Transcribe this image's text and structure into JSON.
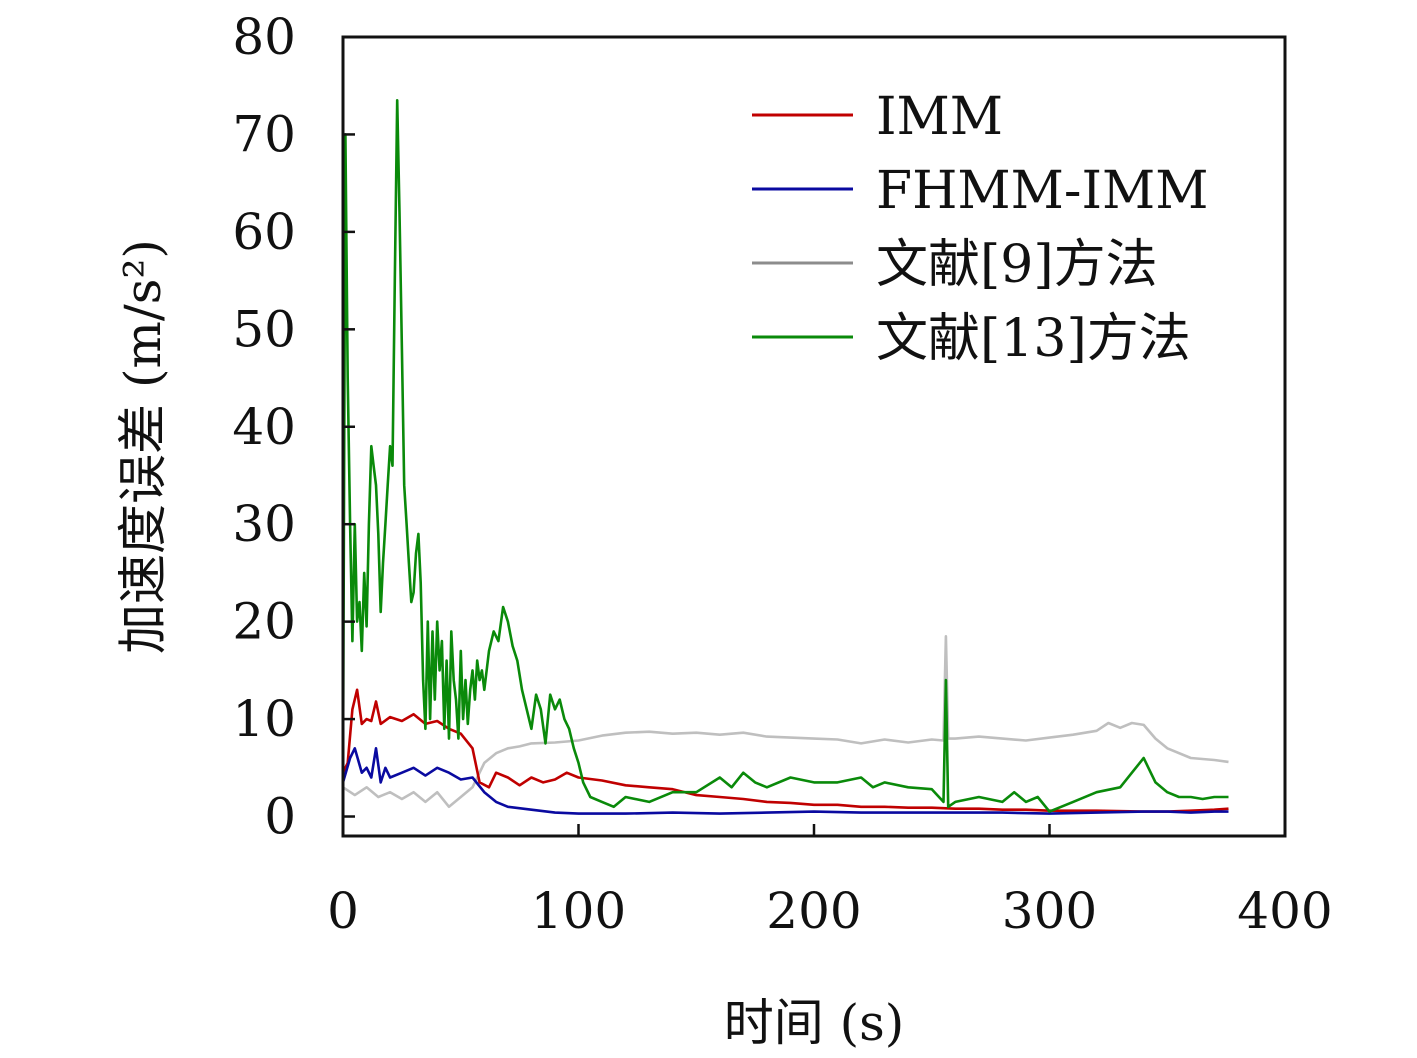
{
  "chart_data": {
    "type": "line",
    "xlabel": "时间 (s)",
    "ylabel": "加速度误差 (m/s²)",
    "xlim": [
      0,
      400
    ],
    "ylim": [
      -2,
      80
    ],
    "xticks": [
      "0",
      "100",
      "200",
      "300",
      "400"
    ],
    "yticks": [
      "0",
      "10",
      "20",
      "30",
      "40",
      "50",
      "60",
      "70",
      "80"
    ],
    "grid": false,
    "legend_position": "top-right",
    "series": [
      {
        "name": "文献[9]方法",
        "color": "#bfbfbf",
        "legend_color": "#8c8c8c",
        "points": [
          [
            0,
            3
          ],
          [
            5,
            2.2
          ],
          [
            10,
            3
          ],
          [
            15,
            2
          ],
          [
            20,
            2.5
          ],
          [
            25,
            1.8
          ],
          [
            30,
            2.5
          ],
          [
            35,
            1.5
          ],
          [
            40,
            2.5
          ],
          [
            45,
            1
          ],
          [
            50,
            2
          ],
          [
            55,
            3
          ],
          [
            60,
            5.5
          ],
          [
            65,
            6.5
          ],
          [
            70,
            7
          ],
          [
            75,
            7.2
          ],
          [
            80,
            7.5
          ],
          [
            90,
            7.6
          ],
          [
            100,
            7.8
          ],
          [
            110,
            8.3
          ],
          [
            120,
            8.6
          ],
          [
            130,
            8.7
          ],
          [
            140,
            8.5
          ],
          [
            150,
            8.6
          ],
          [
            160,
            8.4
          ],
          [
            170,
            8.6
          ],
          [
            180,
            8.2
          ],
          [
            190,
            8.1
          ],
          [
            200,
            8
          ],
          [
            210,
            7.9
          ],
          [
            220,
            7.5
          ],
          [
            230,
            7.9
          ],
          [
            240,
            7.6
          ],
          [
            250,
            7.9
          ],
          [
            255,
            7.8
          ],
          [
            256,
            18.5
          ],
          [
            257,
            8
          ],
          [
            260,
            8
          ],
          [
            270,
            8.2
          ],
          [
            280,
            8
          ],
          [
            290,
            7.8
          ],
          [
            300,
            8.1
          ],
          [
            310,
            8.4
          ],
          [
            320,
            8.8
          ],
          [
            325,
            9.6
          ],
          [
            330,
            9.1
          ],
          [
            335,
            9.6
          ],
          [
            340,
            9.4
          ],
          [
            345,
            8
          ],
          [
            350,
            7
          ],
          [
            360,
            6
          ],
          [
            370,
            5.8
          ],
          [
            376,
            5.6
          ]
        ]
      },
      {
        "name": "IMM",
        "color": "#c00000",
        "points": [
          [
            0,
            4.5
          ],
          [
            2,
            5.5
          ],
          [
            4,
            11
          ],
          [
            6,
            13
          ],
          [
            8,
            9.5
          ],
          [
            10,
            10
          ],
          [
            12,
            9.8
          ],
          [
            14,
            11.8
          ],
          [
            16,
            9.5
          ],
          [
            20,
            10.2
          ],
          [
            25,
            9.8
          ],
          [
            30,
            10.5
          ],
          [
            35,
            9.5
          ],
          [
            40,
            9.8
          ],
          [
            45,
            9
          ],
          [
            50,
            8.5
          ],
          [
            55,
            7
          ],
          [
            58,
            3.5
          ],
          [
            62,
            3
          ],
          [
            65,
            4.5
          ],
          [
            70,
            4
          ],
          [
            75,
            3.2
          ],
          [
            80,
            4
          ],
          [
            85,
            3.5
          ],
          [
            90,
            3.8
          ],
          [
            95,
            4.5
          ],
          [
            100,
            4
          ],
          [
            110,
            3.7
          ],
          [
            120,
            3.2
          ],
          [
            130,
            3
          ],
          [
            140,
            2.8
          ],
          [
            150,
            2.2
          ],
          [
            160,
            2
          ],
          [
            170,
            1.8
          ],
          [
            180,
            1.5
          ],
          [
            190,
            1.4
          ],
          [
            200,
            1.2
          ],
          [
            210,
            1.2
          ],
          [
            220,
            1
          ],
          [
            230,
            1
          ],
          [
            240,
            0.9
          ],
          [
            250,
            0.9
          ],
          [
            260,
            0.8
          ],
          [
            270,
            0.8
          ],
          [
            280,
            0.7
          ],
          [
            290,
            0.7
          ],
          [
            300,
            0.6
          ],
          [
            320,
            0.6
          ],
          [
            340,
            0.5
          ],
          [
            350,
            0.5
          ],
          [
            360,
            0.6
          ],
          [
            370,
            0.7
          ],
          [
            376,
            0.8
          ]
        ]
      },
      {
        "name": "FHMM-IMM",
        "color": "#0a0aa0",
        "points": [
          [
            0,
            3.5
          ],
          [
            3,
            6
          ],
          [
            5,
            7
          ],
          [
            8,
            4.5
          ],
          [
            10,
            5
          ],
          [
            12,
            4
          ],
          [
            14,
            7
          ],
          [
            16,
            3.5
          ],
          [
            18,
            5
          ],
          [
            20,
            4
          ],
          [
            25,
            4.5
          ],
          [
            30,
            5
          ],
          [
            35,
            4.2
          ],
          [
            40,
            5
          ],
          [
            45,
            4.5
          ],
          [
            50,
            3.8
          ],
          [
            55,
            4
          ],
          [
            60,
            2.5
          ],
          [
            65,
            1.5
          ],
          [
            70,
            1
          ],
          [
            80,
            0.7
          ],
          [
            90,
            0.4
          ],
          [
            100,
            0.3
          ],
          [
            120,
            0.3
          ],
          [
            140,
            0.4
          ],
          [
            160,
            0.3
          ],
          [
            180,
            0.4
          ],
          [
            200,
            0.5
          ],
          [
            220,
            0.4
          ],
          [
            240,
            0.4
          ],
          [
            260,
            0.4
          ],
          [
            280,
            0.4
          ],
          [
            300,
            0.3
          ],
          [
            320,
            0.4
          ],
          [
            340,
            0.5
          ],
          [
            350,
            0.5
          ],
          [
            360,
            0.4
          ],
          [
            370,
            0.5
          ],
          [
            376,
            0.5
          ]
        ]
      },
      {
        "name": "文献[13]方法",
        "color": "#0a8a0a",
        "points": [
          [
            0,
            5
          ],
          [
            1,
            70
          ],
          [
            2,
            45
          ],
          [
            3,
            30
          ],
          [
            4,
            18
          ],
          [
            5,
            30
          ],
          [
            6,
            20
          ],
          [
            7,
            22
          ],
          [
            8,
            17
          ],
          [
            9,
            25
          ],
          [
            10,
            19.5
          ],
          [
            11,
            30
          ],
          [
            12,
            38
          ],
          [
            13,
            36
          ],
          [
            14,
            34
          ],
          [
            15,
            29
          ],
          [
            16,
            21
          ],
          [
            17,
            26
          ],
          [
            18,
            30
          ],
          [
            19,
            34
          ],
          [
            20,
            38
          ],
          [
            21,
            36
          ],
          [
            22,
            55
          ],
          [
            23,
            73.5
          ],
          [
            24,
            62
          ],
          [
            25,
            48
          ],
          [
            26,
            34
          ],
          [
            27,
            30
          ],
          [
            28,
            26
          ],
          [
            29,
            22
          ],
          [
            30,
            23
          ],
          [
            31,
            27
          ],
          [
            32,
            29
          ],
          [
            33,
            24
          ],
          [
            34,
            14
          ],
          [
            35,
            9
          ],
          [
            36,
            20
          ],
          [
            37,
            10
          ],
          [
            38,
            19
          ],
          [
            39,
            12
          ],
          [
            40,
            20
          ],
          [
            41,
            15
          ],
          [
            42,
            18
          ],
          [
            43,
            9
          ],
          [
            44,
            16
          ],
          [
            45,
            8
          ],
          [
            46,
            19
          ],
          [
            47,
            14
          ],
          [
            48,
            12
          ],
          [
            49,
            8
          ],
          [
            50,
            17
          ],
          [
            51,
            10
          ],
          [
            52,
            14
          ],
          [
            53,
            9.5
          ],
          [
            54,
            13
          ],
          [
            55,
            15
          ],
          [
            56,
            12
          ],
          [
            57,
            16
          ],
          [
            58,
            14
          ],
          [
            59,
            15
          ],
          [
            60,
            13
          ],
          [
            62,
            17
          ],
          [
            64,
            19
          ],
          [
            66,
            18
          ],
          [
            68,
            21.5
          ],
          [
            70,
            20
          ],
          [
            72,
            17.5
          ],
          [
            74,
            16
          ],
          [
            76,
            13
          ],
          [
            78,
            11
          ],
          [
            80,
            9
          ],
          [
            82,
            12.5
          ],
          [
            84,
            11
          ],
          [
            86,
            7.5
          ],
          [
            88,
            12.5
          ],
          [
            90,
            11
          ],
          [
            92,
            12
          ],
          [
            94,
            10
          ],
          [
            96,
            9
          ],
          [
            98,
            7
          ],
          [
            100,
            5.5
          ],
          [
            102,
            3.5
          ],
          [
            105,
            2
          ],
          [
            110,
            1.5
          ],
          [
            115,
            1
          ],
          [
            120,
            2
          ],
          [
            130,
            1.5
          ],
          [
            140,
            2.5
          ],
          [
            150,
            2.5
          ],
          [
            160,
            4
          ],
          [
            165,
            3
          ],
          [
            170,
            4.5
          ],
          [
            175,
            3.5
          ],
          [
            180,
            3
          ],
          [
            190,
            4
          ],
          [
            200,
            3.5
          ],
          [
            210,
            3.5
          ],
          [
            220,
            4
          ],
          [
            225,
            3
          ],
          [
            230,
            3.5
          ],
          [
            240,
            3
          ],
          [
            250,
            2.8
          ],
          [
            255,
            1.5
          ],
          [
            256,
            14
          ],
          [
            257,
            1
          ],
          [
            260,
            1.5
          ],
          [
            270,
            2
          ],
          [
            280,
            1.5
          ],
          [
            285,
            2.5
          ],
          [
            290,
            1.5
          ],
          [
            295,
            2
          ],
          [
            300,
            0.5
          ],
          [
            310,
            1.5
          ],
          [
            320,
            2.5
          ],
          [
            330,
            3
          ],
          [
            335,
            4.5
          ],
          [
            340,
            6
          ],
          [
            342,
            5
          ],
          [
            345,
            3.5
          ],
          [
            350,
            2.5
          ],
          [
            355,
            2
          ],
          [
            360,
            2
          ],
          [
            365,
            1.8
          ],
          [
            370,
            2
          ],
          [
            376,
            2
          ]
        ]
      }
    ]
  }
}
